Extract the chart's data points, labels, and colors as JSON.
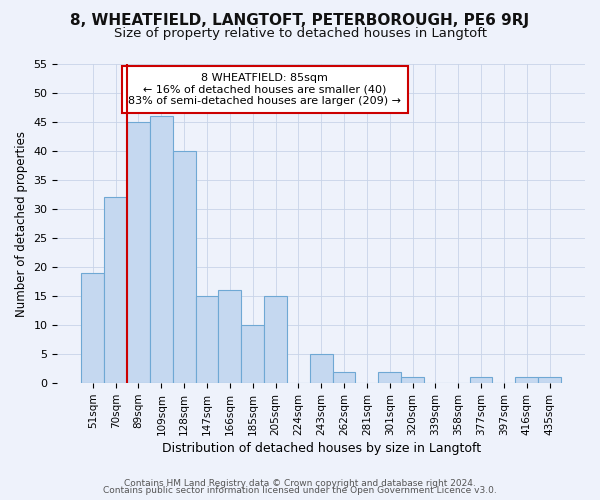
{
  "title": "8, WHEATFIELD, LANGTOFT, PETERBOROUGH, PE6 9RJ",
  "subtitle": "Size of property relative to detached houses in Langtoft",
  "xlabel": "Distribution of detached houses by size in Langtoft",
  "ylabel": "Number of detached properties",
  "categories": [
    "51sqm",
    "70sqm",
    "89sqm",
    "109sqm",
    "128sqm",
    "147sqm",
    "166sqm",
    "185sqm",
    "205sqm",
    "224sqm",
    "243sqm",
    "262sqm",
    "281sqm",
    "301sqm",
    "320sqm",
    "339sqm",
    "358sqm",
    "377sqm",
    "397sqm",
    "416sqm",
    "435sqm"
  ],
  "values": [
    19,
    32,
    45,
    46,
    40,
    15,
    16,
    10,
    15,
    0,
    5,
    2,
    0,
    2,
    1,
    0,
    0,
    1,
    0,
    1,
    1
  ],
  "bar_color": "#c5d8f0",
  "bar_edgecolor": "#6fa8d4",
  "vline_x": 2.0,
  "vline_color": "#cc0000",
  "annotation_text": "8 WHEATFIELD: 85sqm\n← 16% of detached houses are smaller (40)\n83% of semi-detached houses are larger (209) →",
  "annotation_box_edgecolor": "#cc0000",
  "annotation_box_facecolor": "#ffffff",
  "ylim": [
    0,
    55
  ],
  "yticks": [
    0,
    5,
    10,
    15,
    20,
    25,
    30,
    35,
    40,
    45,
    50,
    55
  ],
  "footer_line1": "Contains HM Land Registry data © Crown copyright and database right 2024.",
  "footer_line2": "Contains public sector information licensed under the Open Government Licence v3.0.",
  "bg_color": "#eef2fb",
  "title_fontsize": 11,
  "subtitle_fontsize": 9.5
}
